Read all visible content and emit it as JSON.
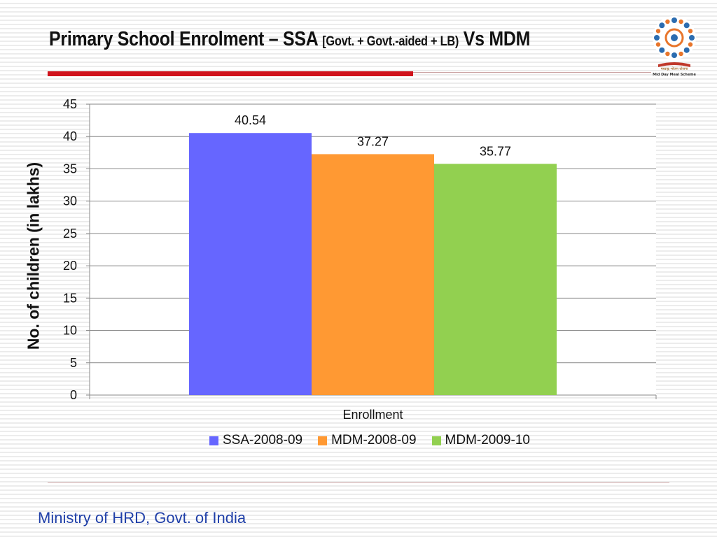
{
  "slide": {
    "title_main": "Primary School Enrolment – SSA ",
    "title_bracket": "[Govt. + Govt.-aided + LB)",
    "title_end": " Vs MDM",
    "footer": "Ministry of HRD, Govt. of India"
  },
  "logo": {
    "caption_hindi": "मध्याह्न भोजन योजना",
    "caption_english": "Mid Day Meal Scheme",
    "icon": "mid-day-meal-logo-icon"
  },
  "chart_data": {
    "type": "bar",
    "categories": [
      "Enrollment"
    ],
    "series": [
      {
        "name": "SSA-2008-09",
        "values": [
          40.54
        ],
        "color": "#6666ff"
      },
      {
        "name": "MDM-2008-09",
        "values": [
          37.27
        ],
        "color": "#ff9933"
      },
      {
        "name": "MDM-2009-10",
        "values": [
          35.77
        ],
        "color": "#92d050"
      }
    ],
    "data_labels": [
      "40.54",
      "37.27",
      "35.77"
    ],
    "xlabel": "Enrollment",
    "ylabel": "No. of children (in lakhs)",
    "ylim": [
      0,
      45
    ],
    "yticks": [
      0,
      5,
      10,
      15,
      20,
      25,
      30,
      35,
      40,
      45
    ],
    "grid": true,
    "legend_position": "bottom"
  }
}
